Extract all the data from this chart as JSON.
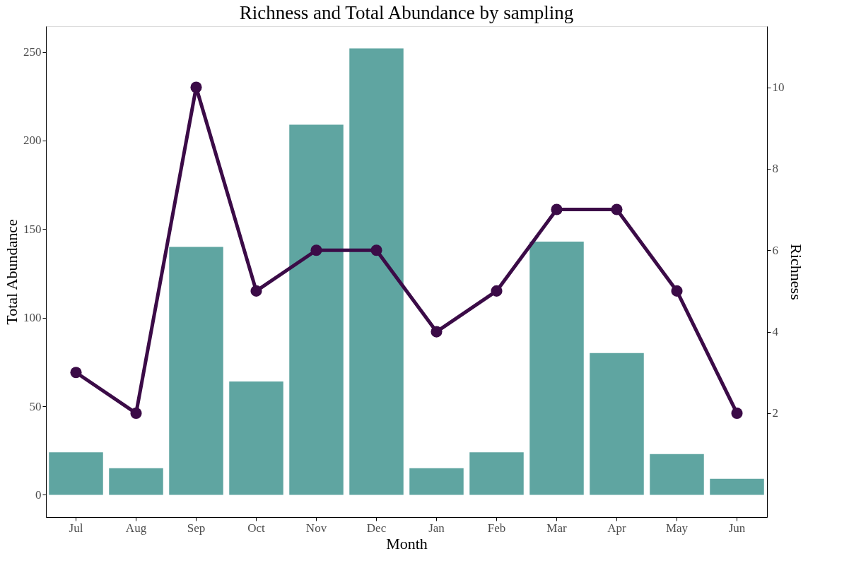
{
  "chart_data": {
    "type": "bar",
    "title": "Richness and Total Abundance by sampling",
    "xlabel": "Month",
    "ylabel": "Total Abundance",
    "y2label": "Richness",
    "categories": [
      "Jul",
      "Aug",
      "Sep",
      "Oct",
      "Nov",
      "Dec",
      "Jan",
      "Feb",
      "Mar",
      "Apr",
      "May",
      "Jun"
    ],
    "series": [
      {
        "color": "#5fa5a1",
        "values": [
          24,
          15,
          140,
          64,
          209,
          252,
          15,
          24,
          143,
          80,
          23,
          9
        ]
      },
      {
        "type": "line",
        "axis": "y2",
        "color": "#3b0b47",
        "marker": "circle",
        "values": [
          3,
          2,
          10,
          5,
          6,
          6,
          4,
          5,
          7,
          7,
          5,
          2
        ]
      }
    ],
    "ylim": [
      -12.6,
      264.6
    ],
    "yticks": [
      0,
      50,
      100,
      150,
      200,
      250
    ],
    "y2lim": [
      -0.55,
      11.5
    ],
    "y2ticks": [
      2,
      4,
      6,
      8,
      10
    ],
    "grid": false
  }
}
